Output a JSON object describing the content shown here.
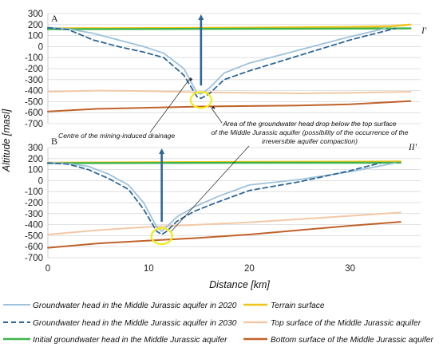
{
  "chart_data": {
    "type": "line",
    "ylabel": "Altitude [masl]",
    "xlabel": "Distance [km]",
    "y_ticks": [
      300,
      200,
      100,
      0,
      -100,
      -200,
      -300,
      -400,
      -500,
      -600,
      -700
    ],
    "x_ticks": [
      0,
      10,
      20,
      30
    ],
    "xlim": [
      0,
      37
    ],
    "ylim": [
      -700,
      300
    ],
    "grid": "horizontal",
    "legend_position": "bottom",
    "annotations": {
      "drainage_centre": "Centre of the mining-induced drainage",
      "compaction_line1": "Area of the groundwater head drop below the top surface",
      "compaction_line2": "of the Middle Jurassic aquifer (possibility of the occurrence of the",
      "compaction_line3": "irreversible aquifer compaction)"
    },
    "series_styles": [
      {
        "name": "Groundwater head in the Middle Jurassic aquifer in 2020",
        "color": "#9ec2db",
        "dash": "solid"
      },
      {
        "name": "Groundwater head in the Middle Jurassic aquifer in 2030",
        "color": "#2e6796",
        "dash": "dashed"
      },
      {
        "name": "Initial groundwater head in the Middle Jurassic aquifer",
        "color": "#3cb44b",
        "dash": "solid"
      },
      {
        "name": "Terrain surface",
        "color": "#f2c318",
        "dash": "solid"
      },
      {
        "name": "Top surface of the Middle Jurassic aquifer",
        "color": "#f2c9a6",
        "dash": "solid"
      },
      {
        "name": "Bottom surface of the Middle Jurassic aquifer",
        "color": "#c0622a",
        "dash": "solid"
      }
    ],
    "panels": [
      {
        "panel": "A",
        "section": "I'",
        "series": [
          {
            "name": "Groundwater head in the Middle Jurassic aquifer in 2020",
            "x": [
              0,
              2,
              4.5,
              7,
              9.5,
              11.5,
              13.5,
              14.8,
              15.2,
              16,
              17.5,
              20,
              25,
              30,
              33.5
            ],
            "y": [
              175,
              160,
              120,
              60,
              0,
              -60,
              -200,
              -420,
              -430,
              -380,
              -240,
              -150,
              -30,
              90,
              165
            ]
          },
          {
            "name": "Groundwater head in the Middle Jurassic aquifer in 2030",
            "x": [
              0,
              2,
              4.5,
              7,
              9.5,
              11.5,
              13.5,
              14.8,
              15.2,
              16,
              17.5,
              20,
              25,
              30,
              34.5
            ],
            "y": [
              170,
              155,
              60,
              0,
              -50,
              -100,
              -260,
              -455,
              -470,
              -430,
              -300,
              -220,
              -80,
              60,
              165
            ]
          },
          {
            "name": "Initial groundwater head in the Middle Jurassic aquifer",
            "x": [
              0,
              10,
              20,
              30,
              36
            ],
            "y": [
              158,
              160,
              162,
              164,
              165
            ]
          },
          {
            "name": "Terrain surface",
            "x": [
              0,
              10,
              20,
              30,
              34,
              36
            ],
            "y": [
              165,
              168,
              172,
              178,
              185,
              200
            ]
          },
          {
            "name": "Top surface of the Middle Jurassic aquifer",
            "x": [
              0,
              5,
              10,
              15,
              20,
              25,
              30,
              36
            ],
            "y": [
              -410,
              -400,
              -405,
              -415,
              -420,
              -425,
              -420,
              -410
            ]
          },
          {
            "name": "Bottom surface of the Middle Jurassic aquifer",
            "x": [
              0,
              5,
              10,
              15,
              20,
              25,
              30,
              36
            ],
            "y": [
              -590,
              -565,
              -555,
              -545,
              -540,
              -535,
              -525,
              -495
            ]
          }
        ]
      },
      {
        "panel": "B",
        "section": "II'",
        "series": [
          {
            "name": "Groundwater head in the Middle Jurassic aquifer in 2020",
            "x": [
              0,
              2,
              4,
              6,
              8,
              9.5,
              10.8,
              11.3,
              11.8,
              12.8,
              14.5,
              17,
              20,
              25,
              30,
              34.5
            ],
            "y": [
              165,
              155,
              130,
              60,
              -40,
              -200,
              -420,
              -460,
              -420,
              -330,
              -240,
              -140,
              -40,
              10,
              80,
              160
            ]
          },
          {
            "name": "Groundwater head in the Middle Jurassic aquifer in 2030",
            "x": [
              0,
              2,
              4,
              6,
              8,
              9.5,
              10.8,
              11.3,
              11.8,
              12.8,
              14.5,
              17,
              20,
              25,
              30,
              33
            ],
            "y": [
              160,
              150,
              100,
              20,
              -80,
              -260,
              -460,
              -490,
              -460,
              -370,
              -280,
              -190,
              -90,
              -10,
              90,
              160
            ]
          },
          {
            "name": "Initial groundwater head in the Middle Jurassic aquifer",
            "x": [
              0,
              10,
              20,
              30,
              35
            ],
            "y": [
              158,
              160,
              162,
              162,
              163
            ]
          },
          {
            "name": "Terrain surface",
            "x": [
              0,
              10,
              20,
              30,
              35
            ],
            "y": [
              163,
              166,
              170,
              172,
              173
            ]
          },
          {
            "name": "Top surface of the Middle Jurassic aquifer",
            "x": [
              0,
              5,
              10,
              15,
              20,
              25,
              30,
              35
            ],
            "y": [
              -490,
              -450,
              -420,
              -400,
              -380,
              -350,
              -320,
              -290
            ]
          },
          {
            "name": "Bottom surface of the Middle Jurassic aquifer",
            "x": [
              0,
              5,
              10,
              15,
              20,
              25,
              30,
              35
            ],
            "y": [
              -610,
              -570,
              -545,
              -520,
              -490,
              -450,
              -410,
              -375
            ]
          }
        ]
      }
    ]
  }
}
